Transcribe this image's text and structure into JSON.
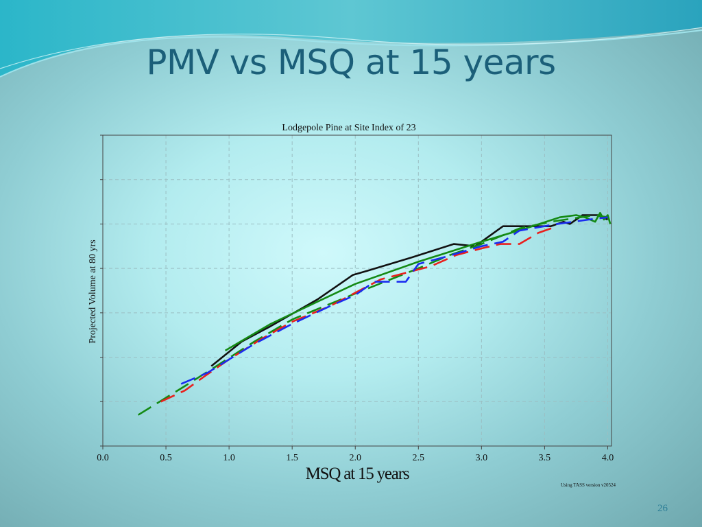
{
  "slide": {
    "title": "PMV vs MSQ at 15 years",
    "page_number": "26"
  },
  "colors": {
    "title": "#1b5f79",
    "black": "#111111",
    "green": "#148a14",
    "red": "#e8201e",
    "blue": "#1a2cf0"
  },
  "chart_data": {
    "type": "line",
    "title": "Lodgepole Pine at Site Index of 23",
    "xlabel": "MSQ at 15 years",
    "ylabel": "Projected Volume at 80 yrs",
    "footnote": "Using TASS version v20524",
    "xlim": [
      0.0,
      4.03
    ],
    "ylim": [
      0.0,
      7.0
    ],
    "grid": true,
    "x_ticks": [
      0.0,
      0.5,
      1.0,
      1.5,
      2.0,
      2.5,
      3.0,
      3.5,
      4.0
    ],
    "x_tick_labels": [
      "0.0",
      "0.5",
      "1.0",
      "1.5",
      "2.0",
      "2.5",
      "3.0",
      "3.5",
      "4.0"
    ],
    "y_ticks": [
      0,
      1,
      2,
      3,
      4,
      5,
      6,
      7
    ],
    "y_tick_labels": [
      "",
      "",
      "",
      "",
      "",
      "",
      "",
      ""
    ],
    "series": [
      {
        "name": "black solid",
        "color": "#111111",
        "dash": "solid",
        "x": [
          0.86,
          1.1,
          1.33,
          1.7,
          1.98,
          2.1,
          2.45,
          2.78,
          2.95,
          3.17,
          3.3,
          3.55,
          3.65,
          3.7,
          3.8,
          3.92,
          4.0
        ],
        "y": [
          1.8,
          2.35,
          2.7,
          3.3,
          3.85,
          3.95,
          4.25,
          4.55,
          4.5,
          4.95,
          4.95,
          4.95,
          5.05,
          5.0,
          5.2,
          5.2,
          5.1
        ]
      },
      {
        "name": "green solid",
        "color": "#148a14",
        "dash": "solid",
        "x": [
          0.97,
          1.33,
          1.7,
          2.0,
          2.5,
          3.0,
          3.35,
          3.62,
          3.75,
          3.82,
          3.9,
          3.94,
          3.97,
          4.0,
          4.02
        ],
        "y": [
          2.15,
          2.75,
          3.25,
          3.65,
          4.15,
          4.6,
          4.9,
          5.15,
          5.2,
          5.15,
          5.05,
          5.25,
          5.1,
          5.2,
          5.0
        ]
      },
      {
        "name": "green dashed",
        "color": "#148a14",
        "dash": "dashed",
        "x": [
          0.28,
          0.45,
          0.65,
          0.9,
          1.2,
          1.5,
          1.8,
          2.1,
          2.5,
          2.75,
          3.0,
          3.3,
          3.55,
          3.9,
          4.0
        ],
        "y": [
          0.7,
          1.0,
          1.35,
          1.8,
          2.35,
          2.85,
          3.2,
          3.55,
          4.0,
          4.3,
          4.55,
          4.9,
          5.05,
          5.2,
          5.15
        ]
      },
      {
        "name": "red dashed",
        "color": "#e8201e",
        "dash": "dashed",
        "x": [
          0.46,
          0.65,
          0.82,
          1.0,
          1.25,
          1.5,
          1.8,
          2.0,
          2.2,
          2.4,
          2.6,
          2.8,
          3.0,
          3.15,
          3.3,
          3.45,
          3.6
        ],
        "y": [
          1.0,
          1.25,
          1.6,
          1.95,
          2.4,
          2.8,
          3.15,
          3.45,
          3.75,
          3.9,
          4.05,
          4.3,
          4.45,
          4.55,
          4.55,
          4.8,
          4.95
        ]
      },
      {
        "name": "blue dashed",
        "color": "#1a2cf0",
        "dash": "dashed",
        "x": [
          0.62,
          0.83,
          1.0,
          1.2,
          1.5,
          1.8,
          2.0,
          2.15,
          2.28,
          2.4,
          2.5,
          2.7,
          3.0,
          3.17,
          3.3,
          3.6,
          3.85,
          4.0
        ],
        "y": [
          1.4,
          1.65,
          1.95,
          2.3,
          2.75,
          3.15,
          3.4,
          3.7,
          3.7,
          3.7,
          4.1,
          4.25,
          4.5,
          4.6,
          4.85,
          5.0,
          5.1,
          5.15
        ]
      }
    ]
  }
}
